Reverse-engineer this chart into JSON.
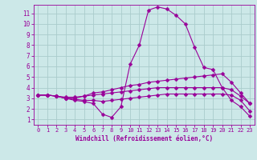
{
  "background_color": "#cce8e8",
  "grid_color": "#aacccc",
  "line_color": "#990099",
  "markersize": 2.5,
  "xlabel": "Windchill (Refroidissement éolien,°C)",
  "xlim": [
    -0.5,
    23.5
  ],
  "ylim": [
    0.5,
    11.8
  ],
  "yticks": [
    1,
    2,
    3,
    4,
    5,
    6,
    7,
    8,
    9,
    10,
    11
  ],
  "xticks": [
    0,
    1,
    2,
    3,
    4,
    5,
    6,
    7,
    8,
    9,
    10,
    11,
    12,
    13,
    14,
    15,
    16,
    17,
    18,
    19,
    20,
    21,
    22,
    23
  ],
  "lines": [
    {
      "x": [
        0,
        1,
        2,
        3,
        4,
        5,
        6,
        7,
        8,
        9,
        10,
        11,
        12,
        13,
        14,
        15,
        16,
        17,
        18,
        19,
        20,
        21,
        22,
        23
      ],
      "y": [
        3.3,
        3.3,
        3.2,
        3.0,
        2.8,
        2.7,
        2.5,
        1.5,
        1.2,
        2.2,
        6.2,
        8.0,
        11.3,
        11.6,
        11.4,
        10.8,
        10.0,
        7.8,
        5.9,
        5.7,
        4.0,
        2.8,
        2.2,
        1.3
      ]
    },
    {
      "x": [
        0,
        1,
        2,
        3,
        4,
        5,
        6,
        7,
        8,
        9,
        10,
        11,
        12,
        13,
        14,
        15,
        16,
        17,
        18,
        19,
        20,
        21,
        22,
        23
      ],
      "y": [
        3.3,
        3.3,
        3.2,
        3.0,
        3.0,
        3.2,
        3.5,
        3.6,
        3.8,
        4.0,
        4.2,
        4.3,
        4.5,
        4.6,
        4.7,
        4.8,
        4.9,
        5.0,
        5.1,
        5.2,
        5.3,
        4.5,
        3.5,
        2.5
      ]
    },
    {
      "x": [
        0,
        1,
        2,
        3,
        4,
        5,
        6,
        7,
        8,
        9,
        10,
        11,
        12,
        13,
        14,
        15,
        16,
        17,
        18,
        19,
        20,
        21,
        22,
        23
      ],
      "y": [
        3.3,
        3.3,
        3.2,
        3.1,
        3.1,
        3.2,
        3.3,
        3.4,
        3.5,
        3.6,
        3.7,
        3.8,
        3.9,
        4.0,
        4.0,
        4.0,
        4.0,
        4.0,
        4.0,
        4.0,
        4.0,
        3.8,
        3.2,
        2.5
      ]
    },
    {
      "x": [
        0,
        1,
        2,
        3,
        4,
        5,
        6,
        7,
        8,
        9,
        10,
        11,
        12,
        13,
        14,
        15,
        16,
        17,
        18,
        19,
        20,
        21,
        22,
        23
      ],
      "y": [
        3.3,
        3.3,
        3.2,
        3.0,
        2.9,
        2.8,
        2.8,
        2.7,
        2.8,
        2.9,
        3.0,
        3.1,
        3.2,
        3.3,
        3.4,
        3.4,
        3.4,
        3.4,
        3.4,
        3.4,
        3.4,
        3.3,
        2.8,
        1.8
      ]
    }
  ]
}
